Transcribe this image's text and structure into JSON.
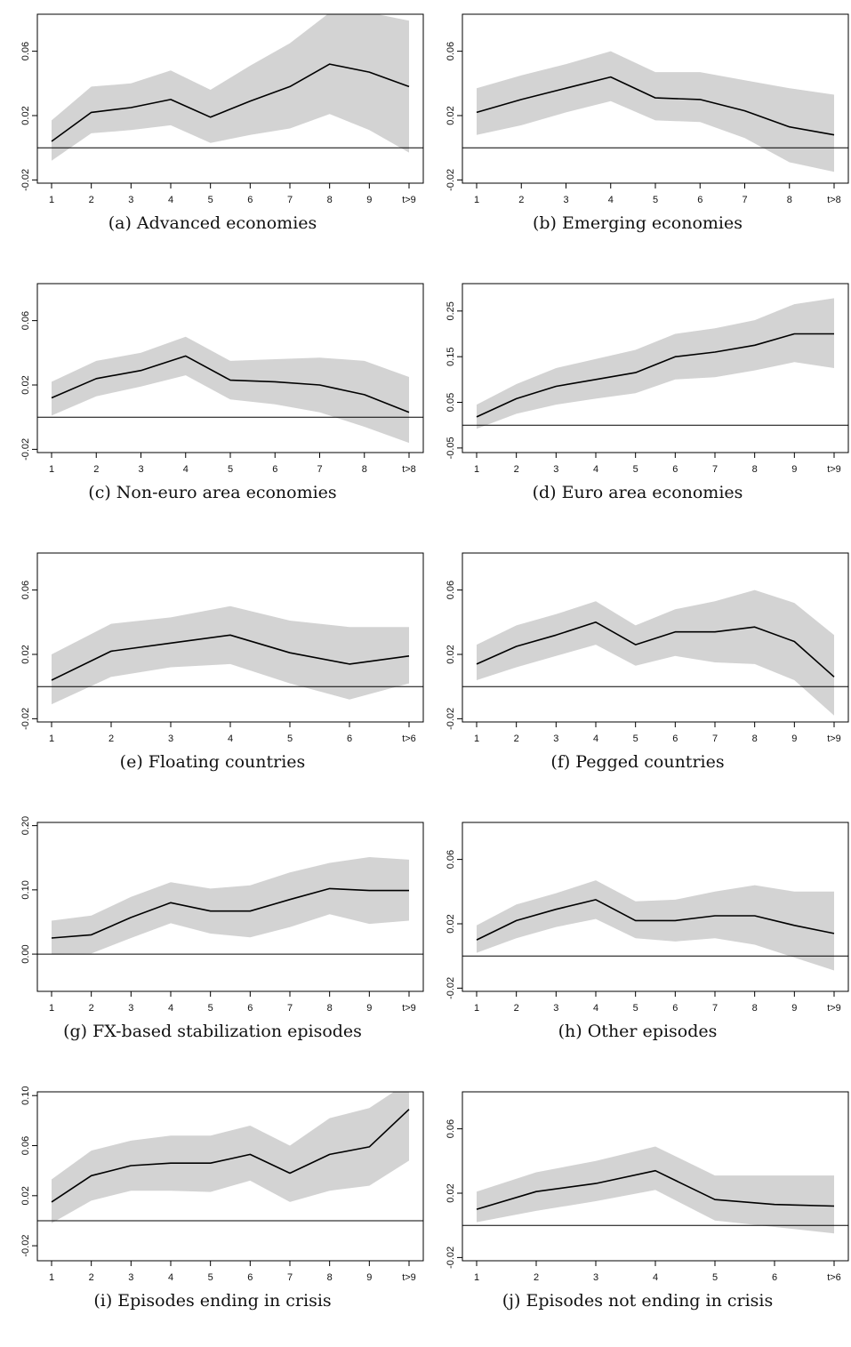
{
  "figure": {
    "chart_data": [
      {
        "type": "line",
        "caption": "(a) Advanced economies",
        "categories": [
          "1",
          "2",
          "3",
          "4",
          "5",
          "6",
          "7",
          "8",
          "9",
          "t>9"
        ],
        "ylim": [
          -0.022,
          0.083
        ],
        "yticks": [
          -0.02,
          0.02,
          0.06
        ],
        "ytick_labels": [
          "-0.02",
          "0.02",
          "0.06"
        ],
        "zero_line": true,
        "series": [
          {
            "estimate": [
              0.004,
              0.022,
              0.025,
              0.03,
              0.019,
              0.029,
              0.038,
              0.052,
              0.047,
              0.038
            ],
            "lower": [
              -0.008,
              0.009,
              0.011,
              0.014,
              0.003,
              0.008,
              0.012,
              0.021,
              0.011,
              -0.003
            ],
            "upper": [
              0.017,
              0.038,
              0.04,
              0.048,
              0.036,
              0.051,
              0.065,
              0.084,
              0.084,
              0.079
            ]
          }
        ],
        "band_color": "#d3d3d3",
        "line_color": "#000000"
      },
      {
        "type": "line",
        "caption": "(b) Emerging economies",
        "categories": [
          "1",
          "2",
          "3",
          "4",
          "5",
          "6",
          "7",
          "8",
          "t>8"
        ],
        "ylim": [
          -0.022,
          0.083
        ],
        "yticks": [
          -0.02,
          0.02,
          0.06
        ],
        "ytick_labels": [
          "-0.02",
          "0.02",
          "0.06"
        ],
        "zero_line": true,
        "series": [
          {
            "estimate": [
              0.022,
              0.03,
              0.037,
              0.044,
              0.031,
              0.03,
              0.023,
              0.013,
              0.008
            ],
            "lower": [
              0.008,
              0.014,
              0.022,
              0.029,
              0.017,
              0.016,
              0.006,
              -0.009,
              -0.015
            ],
            "upper": [
              0.037,
              0.045,
              0.052,
              0.06,
              0.047,
              0.047,
              0.042,
              0.037,
              0.033
            ]
          }
        ],
        "band_color": "#d3d3d3",
        "line_color": "#000000"
      },
      {
        "type": "line",
        "caption": "(c) Non-euro area economies",
        "categories": [
          "1",
          "2",
          "3",
          "4",
          "5",
          "6",
          "7",
          "8",
          "t>8"
        ],
        "ylim": [
          -0.022,
          0.083
        ],
        "yticks": [
          -0.02,
          0.02,
          0.06
        ],
        "ytick_labels": [
          "-0.02",
          "0.02",
          "0.06"
        ],
        "zero_line": true,
        "series": [
          {
            "estimate": [
              0.012,
              0.024,
              0.029,
              0.038,
              0.023,
              0.022,
              0.02,
              0.014,
              0.003
            ],
            "lower": [
              0.001,
              0.013,
              0.019,
              0.026,
              0.011,
              0.008,
              0.003,
              -0.006,
              -0.016
            ],
            "upper": [
              0.022,
              0.035,
              0.04,
              0.05,
              0.035,
              0.036,
              0.037,
              0.035,
              0.025
            ]
          }
        ],
        "band_color": "#d3d3d3",
        "line_color": "#000000"
      },
      {
        "type": "line",
        "caption": "(d) Euro area economies",
        "categories": [
          "1",
          "2",
          "3",
          "4",
          "5",
          "6",
          "7",
          "8",
          "9",
          "t>9"
        ],
        "ylim": [
          -0.06,
          0.31
        ],
        "yticks": [
          -0.05,
          0.05,
          0.15,
          0.25
        ],
        "ytick_labels": [
          "-0.05",
          "0.05",
          "0.15",
          "0.25"
        ],
        "zero_line": true,
        "series": [
          {
            "estimate": [
              0.018,
              0.058,
              0.085,
              0.1,
              0.115,
              0.15,
              0.16,
              0.175,
              0.2,
              0.2
            ],
            "lower": [
              -0.008,
              0.025,
              0.045,
              0.058,
              0.07,
              0.1,
              0.105,
              0.12,
              0.138,
              0.125
            ],
            "upper": [
              0.045,
              0.09,
              0.125,
              0.145,
              0.165,
              0.2,
              0.212,
              0.23,
              0.265,
              0.278
            ]
          }
        ],
        "band_color": "#d3d3d3",
        "line_color": "#000000"
      },
      {
        "type": "line",
        "caption": "(e) Floating countries",
        "categories": [
          "1",
          "2",
          "3",
          "4",
          "5",
          "6",
          "t>6"
        ],
        "ylim": [
          -0.022,
          0.083
        ],
        "yticks": [
          -0.02,
          0.02,
          0.06
        ],
        "ytick_labels": [
          "-0.02",
          "0.02",
          "0.06"
        ],
        "zero_line": true,
        "series": [
          {
            "estimate": [
              0.004,
              0.022,
              0.027,
              0.032,
              0.021,
              0.014,
              0.019
            ],
            "lower": [
              -0.011,
              0.006,
              0.012,
              0.014,
              0.002,
              -0.008,
              0.002
            ],
            "upper": [
              0.02,
              0.039,
              0.043,
              0.05,
              0.041,
              0.037,
              0.037
            ]
          }
        ],
        "band_color": "#d3d3d3",
        "line_color": "#000000"
      },
      {
        "type": "line",
        "caption": "(f) Pegged countries",
        "categories": [
          "1",
          "2",
          "3",
          "4",
          "5",
          "6",
          "7",
          "8",
          "9",
          "t>9"
        ],
        "ylim": [
          -0.022,
          0.083
        ],
        "yticks": [
          -0.02,
          0.02,
          0.06
        ],
        "ytick_labels": [
          "-0.02",
          "0.02",
          "0.06"
        ],
        "zero_line": true,
        "series": [
          {
            "estimate": [
              0.014,
              0.025,
              0.032,
              0.04,
              0.026,
              0.034,
              0.034,
              0.037,
              0.028,
              0.006
            ],
            "lower": [
              0.004,
              0.012,
              0.019,
              0.026,
              0.013,
              0.019,
              0.015,
              0.014,
              0.004,
              -0.018
            ],
            "upper": [
              0.026,
              0.038,
              0.045,
              0.053,
              0.038,
              0.048,
              0.053,
              0.06,
              0.052,
              0.032
            ]
          }
        ],
        "band_color": "#d3d3d3",
        "line_color": "#000000"
      },
      {
        "type": "line",
        "caption": "(g) FX-based stabilization episodes",
        "categories": [
          "1",
          "2",
          "3",
          "4",
          "5",
          "6",
          "7",
          "8",
          "9",
          "t>9"
        ],
        "ylim": [
          -0.058,
          0.205
        ],
        "yticks": [
          0.0,
          0.1,
          0.2
        ],
        "ytick_labels": [
          "0.00",
          "0.10",
          "0.20"
        ],
        "zero_line": true,
        "series": [
          {
            "estimate": [
              0.025,
              0.03,
              0.057,
              0.08,
              0.067,
              0.067,
              0.085,
              0.102,
              0.099,
              0.099
            ],
            "lower": [
              0.0,
              0.001,
              0.025,
              0.048,
              0.032,
              0.026,
              0.042,
              0.062,
              0.047,
              0.052
            ],
            "upper": [
              0.052,
              0.06,
              0.089,
              0.112,
              0.102,
              0.107,
              0.127,
              0.142,
              0.151,
              0.147
            ]
          }
        ],
        "band_color": "#d3d3d3",
        "line_color": "#000000"
      },
      {
        "type": "line",
        "caption": "(h) Other episodes",
        "categories": [
          "1",
          "2",
          "3",
          "4",
          "5",
          "6",
          "7",
          "8",
          "9",
          "t>9"
        ],
        "ylim": [
          -0.022,
          0.083
        ],
        "yticks": [
          -0.02,
          0.02,
          0.06
        ],
        "ytick_labels": [
          "-0.02",
          "0.02",
          "0.06"
        ],
        "zero_line": true,
        "series": [
          {
            "estimate": [
              0.01,
              0.022,
              0.029,
              0.035,
              0.022,
              0.022,
              0.025,
              0.025,
              0.019,
              0.014
            ],
            "lower": [
              0.002,
              0.011,
              0.018,
              0.023,
              0.011,
              0.009,
              0.011,
              0.007,
              -0.001,
              -0.009
            ],
            "upper": [
              0.019,
              0.032,
              0.039,
              0.047,
              0.034,
              0.035,
              0.04,
              0.044,
              0.04,
              0.04
            ]
          }
        ],
        "band_color": "#d3d3d3",
        "line_color": "#000000"
      },
      {
        "type": "line",
        "caption": "(i) Episodes ending in crisis",
        "categories": [
          "1",
          "2",
          "3",
          "4",
          "5",
          "6",
          "7",
          "8",
          "9",
          "t>9"
        ],
        "ylim": [
          -0.032,
          0.103
        ],
        "yticks": [
          -0.02,
          0.02,
          0.06,
          0.1
        ],
        "ytick_labels": [
          "-0.02",
          "0.02",
          "0.06",
          "0.10"
        ],
        "zero_line": true,
        "series": [
          {
            "estimate": [
              0.015,
              0.036,
              0.044,
              0.046,
              0.046,
              0.053,
              0.038,
              0.053,
              0.059,
              0.089
            ],
            "lower": [
              -0.002,
              0.016,
              0.024,
              0.024,
              0.023,
              0.032,
              0.015,
              0.024,
              0.028,
              0.048
            ],
            "upper": [
              0.033,
              0.056,
              0.064,
              0.068,
              0.068,
              0.076,
              0.06,
              0.082,
              0.09,
              0.111
            ]
          }
        ],
        "band_color": "#d3d3d3",
        "line_color": "#000000"
      },
      {
        "type": "line",
        "caption": "(j) Episodes not ending in crisis",
        "categories": [
          "1",
          "2",
          "3",
          "4",
          "5",
          "6",
          "t>6"
        ],
        "ylim": [
          -0.022,
          0.083
        ],
        "yticks": [
          -0.02,
          0.02,
          0.06
        ],
        "ytick_labels": [
          "-0.02",
          "0.02",
          "0.06"
        ],
        "zero_line": true,
        "series": [
          {
            "estimate": [
              0.01,
              0.021,
              0.026,
              0.034,
              0.016,
              0.013,
              0.012
            ],
            "lower": [
              0.002,
              0.009,
              0.015,
              0.022,
              0.003,
              -0.001,
              -0.005
            ],
            "upper": [
              0.021,
              0.033,
              0.04,
              0.049,
              0.031,
              0.031,
              0.031
            ]
          }
        ],
        "band_color": "#d3d3d3",
        "line_color": "#000000"
      }
    ]
  }
}
